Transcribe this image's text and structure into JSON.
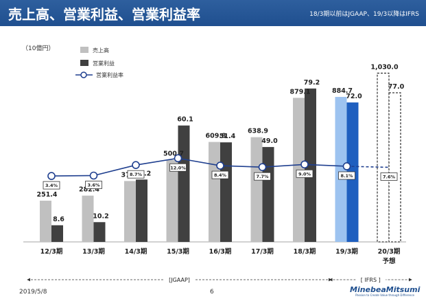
{
  "header": {
    "title": "売上高、営業利益、営業利益率",
    "note": "18/3期以前はJGAAP、19/3以降はIFRS"
  },
  "footer": {
    "date": "2019/5/8",
    "page": "6",
    "logo": "MinebeaMitsumi",
    "logo_tagline": "Passion to Create Value through Difference"
  },
  "colors": {
    "sales": "#c0c0c0",
    "op_income": "#404040",
    "sales_ifrs": "#9dc3f0",
    "op_income_ifrs": "#1f5fbf",
    "margin_line": "#1f3f8f",
    "header_bg": "#1f4f8f"
  },
  "chart_data": {
    "type": "bar",
    "unit_label": "（10億円）",
    "categories": [
      "12/3期",
      "13/3期",
      "14/3期",
      "15/3期",
      "16/3期",
      "17/3期",
      "18/3期",
      "19/3期",
      "20/3期"
    ],
    "forecast_label": "予想",
    "series": [
      {
        "name": "売上高",
        "values": [
          251.4,
          282.4,
          371.5,
          500.7,
          609.8,
          638.9,
          879.1,
          884.7,
          1030.0
        ],
        "labels": [
          "251.4",
          "282.4",
          "371.5",
          "500.7",
          "609.8",
          "638.9",
          "879.1",
          "884.7",
          "1,030.0"
        ]
      },
      {
        "name": "営業利益",
        "values": [
          8.6,
          10.2,
          32.2,
          60.1,
          51.4,
          49.0,
          79.2,
          72.0,
          77.0
        ],
        "labels": [
          "8.6",
          "10.2",
          "32.2",
          "60.1",
          "51.4",
          "49.0",
          "79.2",
          "72.0",
          "77.0"
        ]
      },
      {
        "name": "営業利益率",
        "type": "line",
        "values": [
          3.4,
          3.6,
          8.7,
          12.0,
          8.4,
          7.7,
          9.0,
          8.1,
          7.6
        ],
        "labels": [
          "3.4%",
          "3.6%",
          "8.7%",
          "12.0%",
          "8.4%",
          "7.7%",
          "9.0%",
          "8.1%",
          "7.6%"
        ]
      }
    ],
    "sales_ylim": [
      0,
      1040
    ],
    "op_ylim": [
      0,
      88
    ],
    "margin_ylim": [
      -28.5,
      54
    ],
    "ifrs_start_index": 7,
    "forecast_index": 8,
    "periods": [
      {
        "label": "[JGAAP]",
        "from": 0,
        "to": 6
      },
      {
        "label": "[ IFRS ]",
        "from": 7,
        "to": 8
      }
    ]
  }
}
